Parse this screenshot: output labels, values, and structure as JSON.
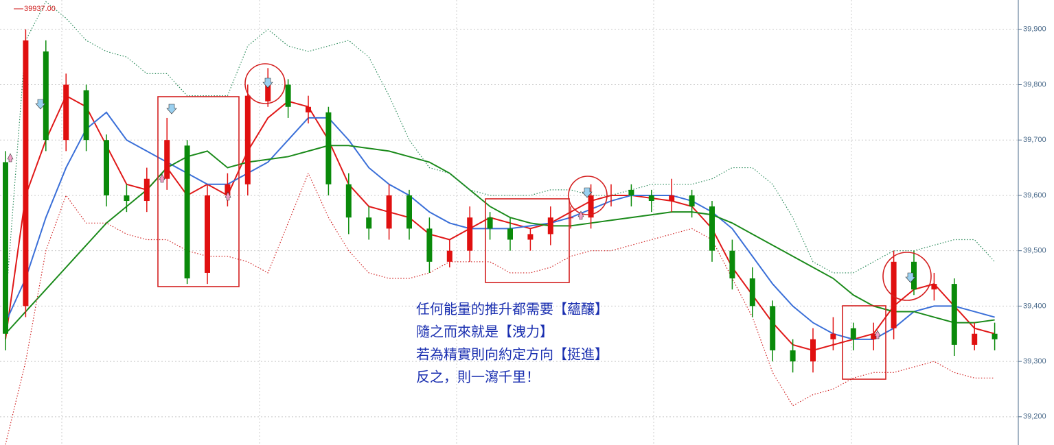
{
  "chart_data": {
    "type": "candlestick",
    "price_marker": {
      "value": 39937,
      "label": "39937.00"
    },
    "annotation": [
      "任何能量的推升都需要【蘊釀】",
      "隨之而來就是【洩力】",
      "若為精實則向約定方向【挺進】",
      "反之，則一瀉千里！"
    ],
    "up_color": "#e01010",
    "down_color": "#0a8a0a",
    "open": [
      39660,
      39400,
      39860,
      39700,
      39790,
      39700,
      39600,
      39590,
      39630,
      39690,
      39460,
      39600,
      39620,
      39770,
      39800,
      39750,
      39750,
      39620,
      39560,
      39540,
      39600,
      39540,
      39480,
      39500,
      39560,
      39540,
      39520,
      39530,
      39560,
      39560,
      39600,
      39610,
      39600,
      39590,
      39600,
      39580,
      39500,
      39450,
      39400,
      39320,
      39300,
      39340,
      39360,
      39340,
      39360,
      39480,
      39430,
      39440,
      39330,
      39350
    ],
    "high": [
      39680,
      39900,
      39880,
      39820,
      39800,
      39710,
      39620,
      39650,
      39740,
      39700,
      39620,
      39640,
      39800,
      39830,
      39810,
      39780,
      39760,
      39640,
      39580,
      39620,
      39610,
      39560,
      39520,
      39580,
      39570,
      39560,
      39540,
      39580,
      39580,
      39620,
      39620,
      39620,
      39610,
      39630,
      39610,
      39590,
      39520,
      39470,
      39410,
      39340,
      39360,
      39380,
      39370,
      39370,
      39500,
      39500,
      39460,
      39450,
      39370,
      39370
    ],
    "low": [
      39320,
      39380,
      39680,
      39680,
      39680,
      39580,
      39570,
      39570,
      39610,
      39440,
      39440,
      39580,
      39600,
      39760,
      39740,
      39730,
      39600,
      39530,
      39520,
      39520,
      39520,
      39460,
      39470,
      39480,
      39520,
      39500,
      39500,
      39510,
      39540,
      39540,
      39580,
      39580,
      39570,
      39570,
      39560,
      39480,
      39430,
      39380,
      39300,
      39280,
      39280,
      39320,
      39320,
      39320,
      39340,
      39420,
      39410,
      39310,
      39320,
      39320
    ],
    "close": [
      39350,
      39880,
      39700,
      39800,
      39700,
      39600,
      39590,
      39630,
      39700,
      39450,
      39600,
      39620,
      39780,
      39800,
      39760,
      39760,
      39620,
      39560,
      39540,
      39600,
      39540,
      39480,
      39500,
      39560,
      39540,
      39520,
      39530,
      39560,
      39560,
      39600,
      39600,
      39600,
      39590,
      39600,
      39580,
      39500,
      39450,
      39400,
      39320,
      39300,
      39340,
      39350,
      39340,
      39350,
      39480,
      39430,
      39440,
      39330,
      39350,
      39340
    ],
    "lines": [
      {
        "color": "#e01818",
        "style": "solid",
        "values": [
          39340,
          39600,
          39700,
          39780,
          39760,
          39690,
          39620,
          39610,
          39650,
          39600,
          39620,
          39600,
          39680,
          39740,
          39770,
          39760,
          39700,
          39620,
          39580,
          39570,
          39560,
          39530,
          39520,
          39540,
          39560,
          39550,
          39540,
          39550,
          39570,
          39590,
          39600,
          39600,
          39595,
          39590,
          39580,
          39540,
          39470,
          39420,
          39370,
          39330,
          39320,
          39330,
          39340,
          39350,
          39400,
          39430,
          39440,
          39400,
          39360,
          39350
        ]
      },
      {
        "color": "#3a6fd8",
        "style": "solid",
        "values": [
          39370,
          39450,
          39560,
          39650,
          39720,
          39750,
          39700,
          39680,
          39660,
          39640,
          39620,
          39620,
          39640,
          39660,
          39700,
          39740,
          39740,
          39700,
          39650,
          39620,
          39600,
          39570,
          39550,
          39540,
          39540,
          39540,
          39545,
          39550,
          39560,
          39575,
          39590,
          39600,
          39600,
          39600,
          39590,
          39570,
          39540,
          39490,
          39440,
          39400,
          39370,
          39350,
          39340,
          39340,
          39360,
          39390,
          39400,
          39400,
          39390,
          39380
        ]
      },
      {
        "color": "#1a8a1a",
        "style": "solid",
        "values": [
          39350,
          39390,
          39430,
          39470,
          39510,
          39550,
          39580,
          39610,
          39650,
          39670,
          39680,
          39650,
          39660,
          39665,
          39670,
          39680,
          39690,
          39690,
          39685,
          39680,
          39670,
          39660,
          39640,
          39610,
          39580,
          39560,
          39550,
          39545,
          39545,
          39550,
          39555,
          39560,
          39565,
          39570,
          39570,
          39565,
          39550,
          39530,
          39510,
          39490,
          39470,
          39450,
          39420,
          39400,
          39390,
          39390,
          39380,
          39370,
          39370,
          39375
        ]
      },
      {
        "color": "#2a8a5a",
        "style": "dotted",
        "values": [
          39400,
          39880,
          39950,
          39920,
          39880,
          39860,
          39850,
          39820,
          39820,
          39780,
          39780,
          39780,
          39870,
          39900,
          39870,
          39860,
          39870,
          39880,
          39850,
          39780,
          39700,
          39650,
          39640,
          39610,
          39600,
          39600,
          39600,
          39610,
          39610,
          39600,
          39600,
          39610,
          39620,
          39620,
          39620,
          39630,
          39650,
          39650,
          39620,
          39560,
          39480,
          39460,
          39460,
          39480,
          39500,
          39500,
          39510,
          39520,
          39520,
          39480
        ]
      },
      {
        "color": "#d02020",
        "style": "dotted",
        "values": [
          39150,
          39300,
          39500,
          39600,
          39550,
          39550,
          39530,
          39520,
          39520,
          39500,
          39490,
          39490,
          39480,
          39460,
          39550,
          39640,
          39560,
          39500,
          39460,
          39450,
          39450,
          39460,
          39480,
          39480,
          39480,
          39460,
          39460,
          39470,
          39490,
          39500,
          39500,
          39510,
          39520,
          39530,
          39540,
          39520,
          39450,
          39380,
          39280,
          39220,
          39240,
          39250,
          39270,
          39280,
          39280,
          39290,
          39300,
          39280,
          39270,
          39270
        ]
      }
    ],
    "ylim": [
      39149,
      39953
    ],
    "yticks": [
      {
        "value": 39200,
        "label": "39,200"
      },
      {
        "value": 39300,
        "label": "39,300"
      },
      {
        "value": 39400,
        "label": "39,400"
      },
      {
        "value": 39500,
        "label": "39,500"
      },
      {
        "value": 39600,
        "label": "39,600"
      },
      {
        "value": 39700,
        "label": "39,700"
      },
      {
        "value": 39800,
        "label": "39,800"
      },
      {
        "value": 39900,
        "label": "39,900"
      }
    ],
    "grid": true
  }
}
